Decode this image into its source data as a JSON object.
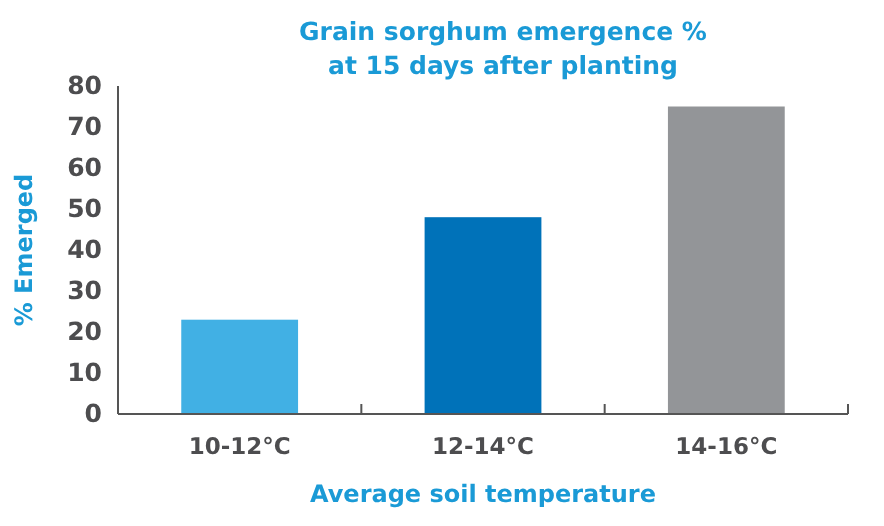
{
  "chart_data": {
    "type": "bar",
    "title": "Grain sorghum emergence %\nat 15 days after planting",
    "xlabel": "Average soil temperature",
    "ylabel": "% Emerged",
    "categories": [
      "10-12°C",
      "12-14°C",
      "14-16°C"
    ],
    "values": [
      23,
      48,
      75
    ],
    "colors": [
      "#41b0e4",
      "#0072b9",
      "#939598"
    ],
    "ylim": [
      0,
      80
    ],
    "yticks": [
      0,
      10,
      20,
      30,
      40,
      50,
      60,
      70,
      80
    ],
    "grid": false
  }
}
